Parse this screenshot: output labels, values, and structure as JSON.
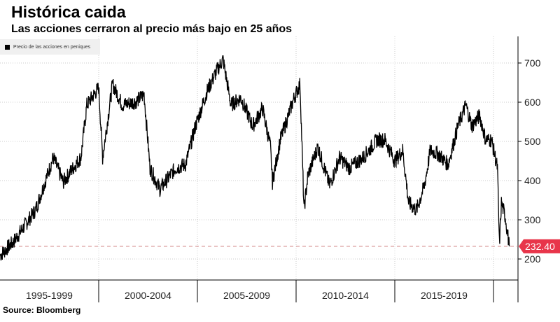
{
  "title": "Histórica caida",
  "subtitle": "Las acciones cerraron al precio más bajo en 25 años",
  "source": "Source:  Bloomberg",
  "chart_data": {
    "type": "line",
    "title": "Histórica caida",
    "subtitle": "Las acciones cerraron al precio más bajo en 25 años",
    "legend": {
      "label": "Precio de las acciones en peniques",
      "placement": "top-left"
    },
    "series": [
      {
        "name": "Precio de las acciones en peniques",
        "color": "#000000",
        "points": [
          [
            1995.0,
            209
          ],
          [
            1995.7,
            245
          ],
          [
            1996.8,
            325
          ],
          [
            1997.7,
            459
          ],
          [
            1998.2,
            396
          ],
          [
            1998.7,
            432
          ],
          [
            1999.1,
            459
          ],
          [
            1999.4,
            593
          ],
          [
            2000.0,
            637
          ],
          [
            2000.2,
            459
          ],
          [
            2000.7,
            646
          ],
          [
            2001.2,
            593
          ],
          [
            2001.9,
            602
          ],
          [
            2002.3,
            620
          ],
          [
            2002.6,
            432
          ],
          [
            2003.1,
            378
          ],
          [
            2003.9,
            432
          ],
          [
            2004.4,
            441
          ],
          [
            2004.9,
            539
          ],
          [
            2005.5,
            629
          ],
          [
            2006.0,
            682
          ],
          [
            2006.3,
            709
          ],
          [
            2006.7,
            593
          ],
          [
            2007.2,
            611
          ],
          [
            2007.8,
            539
          ],
          [
            2008.3,
            584
          ],
          [
            2008.7,
            486
          ],
          [
            2008.8,
            396
          ],
          [
            2009.2,
            504
          ],
          [
            2009.9,
            611
          ],
          [
            2010.2,
            646
          ],
          [
            2010.4,
            325
          ],
          [
            2010.6,
            414
          ],
          [
            2011.1,
            486
          ],
          [
            2011.7,
            387
          ],
          [
            2012.2,
            459
          ],
          [
            2012.7,
            432
          ],
          [
            2013.4,
            459
          ],
          [
            2014.1,
            504
          ],
          [
            2014.5,
            504
          ],
          [
            2015.0,
            450
          ],
          [
            2015.4,
            477
          ],
          [
            2015.7,
            343
          ],
          [
            2016.1,
            325
          ],
          [
            2016.5,
            387
          ],
          [
            2016.8,
            477
          ],
          [
            2017.2,
            468
          ],
          [
            2017.7,
            441
          ],
          [
            2018.2,
            539
          ],
          [
            2018.6,
            593
          ],
          [
            2018.9,
            539
          ],
          [
            2019.3,
            566
          ],
          [
            2019.6,
            504
          ],
          [
            2019.9,
            504
          ],
          [
            2020.2,
            432
          ],
          [
            2020.3,
            236
          ],
          [
            2020.4,
            343
          ],
          [
            2020.6,
            307
          ],
          [
            2020.8,
            232.4
          ]
        ]
      }
    ],
    "x_categories": [
      "1995-1999",
      "2000-2004",
      "2005-2009",
      "2010-2014",
      "2015-2019"
    ],
    "xlim": [
      1995,
      2021.3
    ],
    "ylim": [
      180,
      760
    ],
    "yticks": [
      200,
      300,
      400,
      500,
      600,
      700
    ],
    "grid": true,
    "last_value": {
      "value": 232.4,
      "label": "232.40",
      "color": "#e8354a"
    },
    "reference_line": {
      "value": 232.4,
      "style": "dashed",
      "color": "#d08080"
    }
  }
}
